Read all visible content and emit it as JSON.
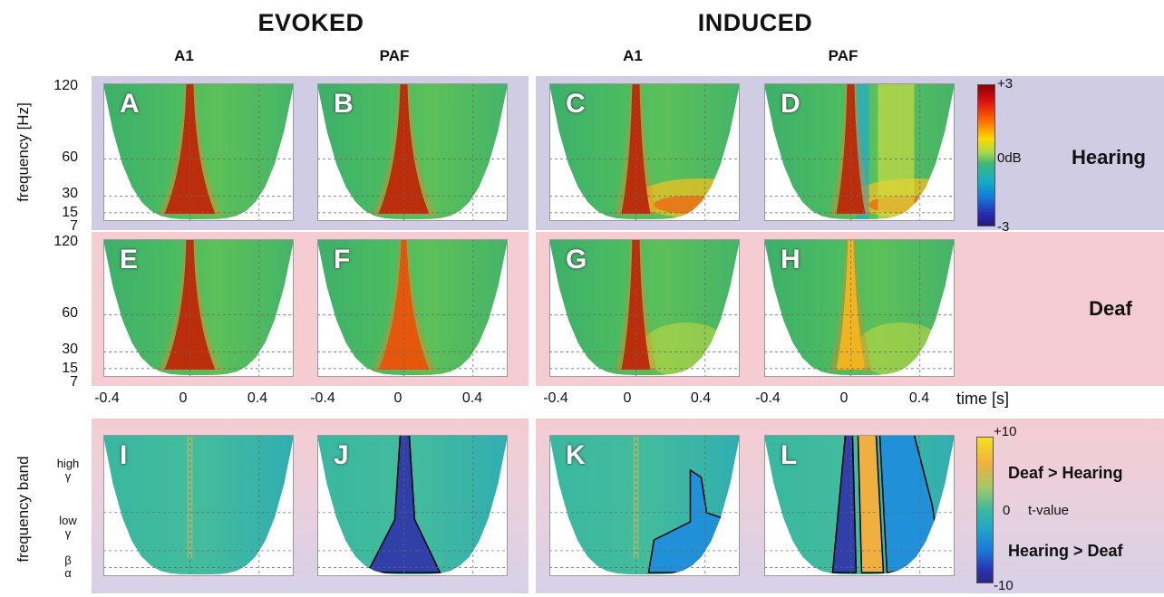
{
  "headers": {
    "evoked": "EVOKED",
    "induced": "INDUCED"
  },
  "columns": {
    "evoked_a1": "A1",
    "evoked_paf": "PAF",
    "induced_a1": "A1",
    "induced_paf": "PAF"
  },
  "conditions": {
    "hearing": "Hearing",
    "deaf": "Deaf"
  },
  "axes": {
    "y_label": "frequency [Hz]",
    "y_ticks": [
      "120",
      "60",
      "30",
      "15",
      "7"
    ],
    "x_label": "time [s]",
    "x_ticks": [
      "-0.4",
      "0",
      "0.4"
    ],
    "band_label": "frequency band",
    "bands": {
      "high": "high\nγ",
      "low": "low\nγ",
      "beta": "β",
      "alpha": "α"
    }
  },
  "colorbar_power": {
    "max": "+3",
    "mid": "0dB",
    "min": "-3"
  },
  "colorbar_t": {
    "max": "+10",
    "mid": "0",
    "unit": "t-value",
    "min": "-10",
    "pos_label": "Deaf > Hearing",
    "neg_label": "Hearing > Deaf"
  },
  "panel_letters": [
    "A",
    "B",
    "C",
    "D",
    "E",
    "F",
    "G",
    "H",
    "I",
    "J",
    "K",
    "L"
  ],
  "chart_data": {
    "type": "heatmap",
    "x_unit": "time [s]",
    "xlim": [
      -0.5,
      0.6
    ],
    "y_unit": "frequency [Hz]",
    "ylim": [
      7,
      120
    ],
    "colormap_range_dB": [
      -3,
      3
    ],
    "t_value_range": [
      -10,
      10
    ],
    "panels": [
      {
        "id": "A",
        "measure": "EVOKED",
        "area": "A1",
        "group": "Hearing",
        "onset_peak_dB": 3
      },
      {
        "id": "B",
        "measure": "EVOKED",
        "area": "PAF",
        "group": "Hearing",
        "onset_peak_dB": 3
      },
      {
        "id": "C",
        "measure": "INDUCED",
        "area": "A1",
        "group": "Hearing",
        "onset_peak_dB": 3
      },
      {
        "id": "D",
        "measure": "INDUCED",
        "area": "PAF",
        "group": "Hearing",
        "onset_peak_dB": 3
      },
      {
        "id": "E",
        "measure": "EVOKED",
        "area": "A1",
        "group": "Deaf",
        "onset_peak_dB": 3
      },
      {
        "id": "F",
        "measure": "EVOKED",
        "area": "PAF",
        "group": "Deaf",
        "onset_peak_dB": 2
      },
      {
        "id": "G",
        "measure": "INDUCED",
        "area": "A1",
        "group": "Deaf",
        "onset_peak_dB": 3
      },
      {
        "id": "H",
        "measure": "INDUCED",
        "area": "PAF",
        "group": "Deaf",
        "onset_peak_dB": 1.5
      },
      {
        "id": "I",
        "measure": "EVOKED",
        "area": "A1",
        "group": "Deaf vs Hearing",
        "significant_cluster": "none"
      },
      {
        "id": "J",
        "measure": "EVOKED",
        "area": "PAF",
        "group": "Deaf vs Hearing",
        "significant_cluster": "Hearing > Deaf"
      },
      {
        "id": "K",
        "measure": "INDUCED",
        "area": "A1",
        "group": "Deaf vs Hearing",
        "significant_cluster": "Hearing > Deaf"
      },
      {
        "id": "L",
        "measure": "INDUCED",
        "area": "PAF",
        "group": "Deaf vs Hearing",
        "significant_cluster": "Hearing > Deaf and Deaf > Hearing"
      }
    ]
  }
}
